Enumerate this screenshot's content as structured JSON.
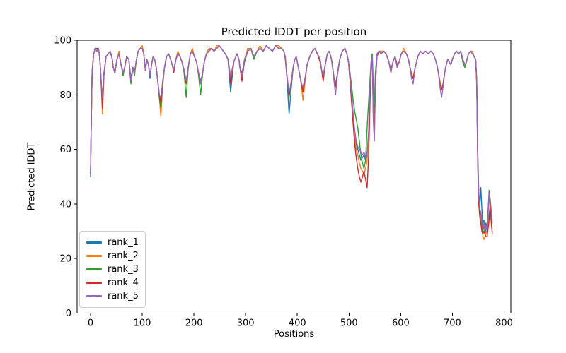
{
  "figure_title": "Predicted lDDT per position",
  "chart_data": {
    "type": "line",
    "title": "Predicted lDDT per position",
    "xlabel": "Positions",
    "ylabel": "Predicted lDDT",
    "xlim": [
      -26,
      813
    ],
    "ylim": [
      0,
      100
    ],
    "xticks": [
      0,
      100,
      200,
      300,
      400,
      500,
      600,
      700,
      800
    ],
    "yticks": [
      0,
      20,
      40,
      60,
      80,
      100
    ],
    "grid": false,
    "legend_position": "lower left",
    "x": [
      0,
      1,
      3,
      6,
      9,
      12,
      15,
      17,
      19,
      21,
      23,
      26,
      30,
      34,
      38,
      42,
      44,
      47,
      51,
      55,
      59,
      63,
      66,
      70,
      74,
      78,
      82,
      85,
      88,
      92,
      96,
      100,
      103,
      106,
      109,
      112,
      115,
      118,
      121,
      124,
      127,
      130,
      133,
      136,
      139,
      143,
      147,
      151,
      155,
      158,
      161,
      165,
      169,
      173,
      177,
      181,
      185,
      189,
      193,
      197,
      201,
      205,
      209,
      213,
      217,
      220,
      224,
      229,
      234,
      239,
      244,
      249,
      253,
      257,
      261,
      266,
      271,
      277,
      283,
      287,
      289,
      293,
      298,
      304,
      310,
      316,
      322,
      328,
      334,
      340,
      346,
      352,
      358,
      364,
      370,
      374,
      377,
      380,
      384,
      388,
      392,
      395,
      398,
      402,
      405,
      408,
      411,
      415,
      419,
      424,
      429,
      434,
      439,
      444,
      447,
      450,
      454,
      458,
      462,
      466,
      469,
      471,
      474,
      478,
      482,
      487,
      492,
      496,
      499,
      502,
      505,
      508,
      511,
      514,
      517,
      520,
      523,
      526,
      529,
      532,
      535,
      538,
      541,
      543,
      545,
      547,
      549,
      551,
      554,
      558,
      562,
      567,
      572,
      577,
      581,
      585,
      589,
      593,
      597,
      601,
      606,
      611,
      615,
      618,
      621,
      624,
      628,
      633,
      638,
      643,
      648,
      653,
      658,
      663,
      667,
      670,
      673,
      676,
      679,
      682,
      685,
      688,
      691,
      694,
      697,
      700,
      704,
      708,
      712,
      716,
      720,
      724,
      727,
      731,
      735,
      739,
      742,
      745,
      747,
      749,
      751,
      753,
      755,
      757,
      759,
      761,
      763,
      765,
      767,
      769,
      771,
      773,
      775,
      777
    ],
    "series": [
      {
        "name": "rank_1",
        "color": "#1f77b4",
        "values": [
          51,
          65,
          88,
          95,
          97,
          96,
          97,
          95,
          90,
          83,
          79,
          88,
          94,
          95,
          96,
          93,
          90,
          88,
          93,
          95,
          91,
          88,
          90,
          94,
          93,
          86,
          90,
          88,
          92,
          96,
          97,
          97,
          95,
          89,
          93,
          91,
          86,
          91,
          94,
          93,
          90,
          85,
          80,
          78,
          84,
          90,
          94,
          95,
          93,
          91,
          89,
          93,
          95,
          94,
          92,
          89,
          85,
          90,
          95,
          96,
          94,
          92,
          88,
          85,
          88,
          92,
          95,
          96,
          97,
          96,
          97,
          98,
          97,
          96,
          95,
          93,
          81,
          92,
          95,
          93,
          90,
          88,
          93,
          96,
          97,
          94,
          96,
          97,
          96,
          98,
          97,
          96,
          98,
          97,
          97,
          96,
          93,
          86,
          73,
          82,
          90,
          93,
          94,
          90,
          87,
          84,
          83,
          86,
          91,
          94,
          96,
          97,
          95,
          93,
          89,
          87,
          91,
          95,
          96,
          93,
          89,
          86,
          84,
          88,
          93,
          96,
          97,
          95,
          92,
          86,
          79,
          72,
          66,
          62,
          60,
          58,
          56,
          57,
          58,
          56,
          58,
          66,
          84,
          91,
          93,
          75,
          66,
          85,
          94,
          96,
          95,
          96,
          95,
          92,
          89,
          92,
          94,
          91,
          92,
          95,
          96,
          95,
          93,
          90,
          87,
          86,
          90,
          94,
          96,
          95,
          96,
          95,
          96,
          95,
          93,
          91,
          88,
          84,
          82,
          84,
          88,
          91,
          93,
          92,
          91,
          93,
          95,
          96,
          95,
          96,
          93,
          91,
          92,
          95,
          96,
          95,
          94,
          93,
          85,
          60,
          44,
          40,
          46,
          38,
          33,
          34,
          32,
          33,
          31,
          33,
          36,
          39,
          37,
          34
        ]
      },
      {
        "name": "rank_2",
        "color": "#ff7f0e",
        "values": [
          51,
          66,
          89,
          95,
          97,
          96,
          97,
          95,
          90,
          82,
          73,
          87,
          94,
          95,
          96,
          93,
          90,
          88,
          93,
          96,
          91,
          88,
          90,
          94,
          93,
          85,
          90,
          88,
          92,
          96,
          97,
          98,
          95,
          89,
          93,
          91,
          87,
          91,
          94,
          93,
          90,
          85,
          79,
          72,
          82,
          90,
          94,
          95,
          93,
          91,
          89,
          93,
          96,
          94,
          92,
          89,
          84,
          90,
          95,
          97,
          94,
          92,
          88,
          84,
          88,
          92,
          95,
          97,
          97,
          96,
          98,
          98,
          97,
          96,
          95,
          93,
          87,
          92,
          95,
          93,
          90,
          87,
          93,
          97,
          97,
          94,
          96,
          98,
          96,
          98,
          97,
          96,
          98,
          98,
          97,
          96,
          94,
          87,
          80,
          85,
          90,
          93,
          94,
          90,
          87,
          83,
          78,
          85,
          91,
          94,
          96,
          97,
          95,
          93,
          89,
          87,
          91,
          95,
          96,
          93,
          89,
          86,
          83,
          88,
          93,
          96,
          97,
          95,
          92,
          85,
          78,
          70,
          64,
          60,
          58,
          55,
          53,
          52,
          51,
          53,
          56,
          64,
          82,
          92,
          94,
          72,
          64,
          84,
          95,
          96,
          96,
          96,
          95,
          92,
          89,
          92,
          94,
          91,
          92,
          95,
          97,
          95,
          93,
          90,
          88,
          86,
          90,
          94,
          96,
          95,
          96,
          95,
          96,
          95,
          93,
          91,
          88,
          85,
          82,
          84,
          88,
          91,
          93,
          92,
          91,
          93,
          95,
          96,
          95,
          96,
          93,
          91,
          92,
          95,
          96,
          96,
          94,
          93,
          84,
          56,
          41,
          36,
          34,
          31,
          28,
          27,
          28,
          30,
          29,
          32,
          35,
          38,
          33,
          30
        ]
      },
      {
        "name": "rank_3",
        "color": "#2ca02c",
        "values": [
          50,
          64,
          88,
          95,
          97,
          96,
          97,
          95,
          90,
          83,
          79,
          88,
          94,
          95,
          96,
          93,
          90,
          88,
          93,
          95,
          91,
          87,
          90,
          94,
          93,
          84,
          90,
          87,
          92,
          96,
          97,
          97,
          95,
          89,
          93,
          91,
          87,
          91,
          94,
          93,
          90,
          85,
          79,
          75,
          83,
          90,
          94,
          95,
          93,
          91,
          89,
          93,
          95,
          94,
          92,
          88,
          79,
          90,
          95,
          96,
          94,
          92,
          87,
          80,
          88,
          92,
          95,
          96,
          97,
          96,
          97,
          98,
          97,
          96,
          95,
          93,
          86,
          92,
          95,
          93,
          90,
          87,
          92,
          96,
          97,
          93,
          96,
          97,
          96,
          98,
          97,
          96,
          98,
          97,
          97,
          96,
          93,
          87,
          79,
          84,
          90,
          93,
          94,
          90,
          87,
          84,
          82,
          86,
          91,
          94,
          96,
          97,
          95,
          93,
          89,
          87,
          91,
          95,
          96,
          93,
          89,
          86,
          83,
          88,
          93,
          96,
          97,
          95,
          92,
          88,
          83,
          78,
          74,
          71,
          68,
          63,
          58,
          55,
          53,
          56,
          68,
          78,
          87,
          93,
          95,
          83,
          76,
          88,
          95,
          96,
          95,
          96,
          95,
          92,
          89,
          92,
          94,
          91,
          92,
          95,
          96,
          95,
          93,
          90,
          87,
          86,
          90,
          94,
          96,
          95,
          96,
          95,
          96,
          95,
          93,
          91,
          88,
          84,
          82,
          84,
          88,
          91,
          93,
          92,
          91,
          93,
          95,
          96,
          95,
          96,
          92,
          90,
          92,
          95,
          96,
          95,
          94,
          93,
          86,
          58,
          42,
          37,
          36,
          33,
          30,
          32,
          29,
          31,
          32,
          38,
          45,
          38,
          34,
          31
        ]
      },
      {
        "name": "rank_4",
        "color": "#d62728",
        "values": [
          51,
          65,
          88,
          95,
          97,
          97,
          97,
          95,
          90,
          83,
          75,
          88,
          94,
          95,
          96,
          93,
          90,
          88,
          93,
          95,
          91,
          88,
          90,
          94,
          93,
          85,
          90,
          88,
          92,
          96,
          97,
          97,
          95,
          89,
          93,
          91,
          87,
          91,
          94,
          93,
          90,
          85,
          80,
          77,
          84,
          90,
          94,
          95,
          93,
          91,
          88,
          93,
          95,
          94,
          92,
          89,
          84,
          90,
          95,
          96,
          94,
          92,
          88,
          84,
          88,
          92,
          95,
          96,
          97,
          96,
          97,
          98,
          97,
          96,
          95,
          93,
          84,
          92,
          95,
          93,
          90,
          85,
          93,
          96,
          97,
          94,
          96,
          97,
          96,
          98,
          97,
          96,
          98,
          97,
          97,
          96,
          93,
          87,
          80,
          84,
          90,
          93,
          94,
          90,
          87,
          84,
          81,
          86,
          91,
          94,
          96,
          97,
          95,
          92,
          89,
          85,
          91,
          95,
          96,
          93,
          89,
          86,
          83,
          88,
          93,
          96,
          97,
          95,
          92,
          85,
          77,
          69,
          62,
          57,
          53,
          50,
          48,
          50,
          52,
          49,
          46,
          58,
          80,
          91,
          93,
          73,
          68,
          84,
          94,
          96,
          95,
          96,
          95,
          92,
          89,
          92,
          94,
          91,
          92,
          95,
          96,
          95,
          93,
          90,
          87,
          86,
          90,
          94,
          96,
          95,
          96,
          95,
          96,
          95,
          93,
          91,
          88,
          84,
          82,
          84,
          88,
          91,
          93,
          92,
          91,
          93,
          95,
          96,
          95,
          96,
          93,
          91,
          92,
          95,
          96,
          95,
          94,
          93,
          84,
          55,
          40,
          35,
          33,
          30,
          29,
          30,
          29,
          28,
          28,
          31,
          34,
          40,
          35,
          29
        ]
      },
      {
        "name": "rank_5",
        "color": "#9467bd",
        "values": [
          51,
          65,
          88,
          95,
          97,
          96,
          97,
          95,
          90,
          84,
          79,
          88,
          94,
          95,
          96,
          93,
          90,
          88,
          93,
          95,
          91,
          88,
          90,
          94,
          93,
          85,
          90,
          88,
          92,
          96,
          97,
          97,
          95,
          89,
          93,
          91,
          87,
          91,
          94,
          93,
          90,
          85,
          80,
          79,
          84,
          90,
          94,
          95,
          93,
          91,
          89,
          93,
          95,
          94,
          92,
          89,
          85,
          90,
          95,
          96,
          94,
          92,
          88,
          84,
          88,
          92,
          95,
          96,
          97,
          96,
          97,
          98,
          97,
          96,
          95,
          93,
          86,
          92,
          95,
          93,
          90,
          87,
          93,
          96,
          97,
          94,
          96,
          97,
          96,
          98,
          97,
          96,
          98,
          97,
          97,
          96,
          93,
          87,
          81,
          84,
          90,
          93,
          94,
          90,
          87,
          84,
          83,
          86,
          91,
          94,
          96,
          97,
          95,
          93,
          89,
          87,
          91,
          95,
          96,
          93,
          89,
          85,
          80,
          88,
          93,
          96,
          97,
          95,
          92,
          87,
          80,
          73,
          67,
          63,
          61,
          60,
          59,
          58,
          59,
          57,
          59,
          67,
          85,
          92,
          94,
          70,
          63,
          83,
          95,
          96,
          95,
          96,
          95,
          92,
          88,
          92,
          94,
          90,
          92,
          95,
          96,
          95,
          93,
          90,
          86,
          84,
          90,
          94,
          96,
          95,
          96,
          95,
          96,
          95,
          93,
          91,
          88,
          83,
          79,
          83,
          88,
          91,
          93,
          92,
          91,
          93,
          95,
          96,
          95,
          96,
          93,
          91,
          92,
          95,
          96,
          95,
          94,
          93,
          85,
          57,
          43,
          38,
          37,
          34,
          31,
          33,
          30,
          32,
          30,
          36,
          44,
          42,
          38,
          33
        ]
      }
    ]
  }
}
